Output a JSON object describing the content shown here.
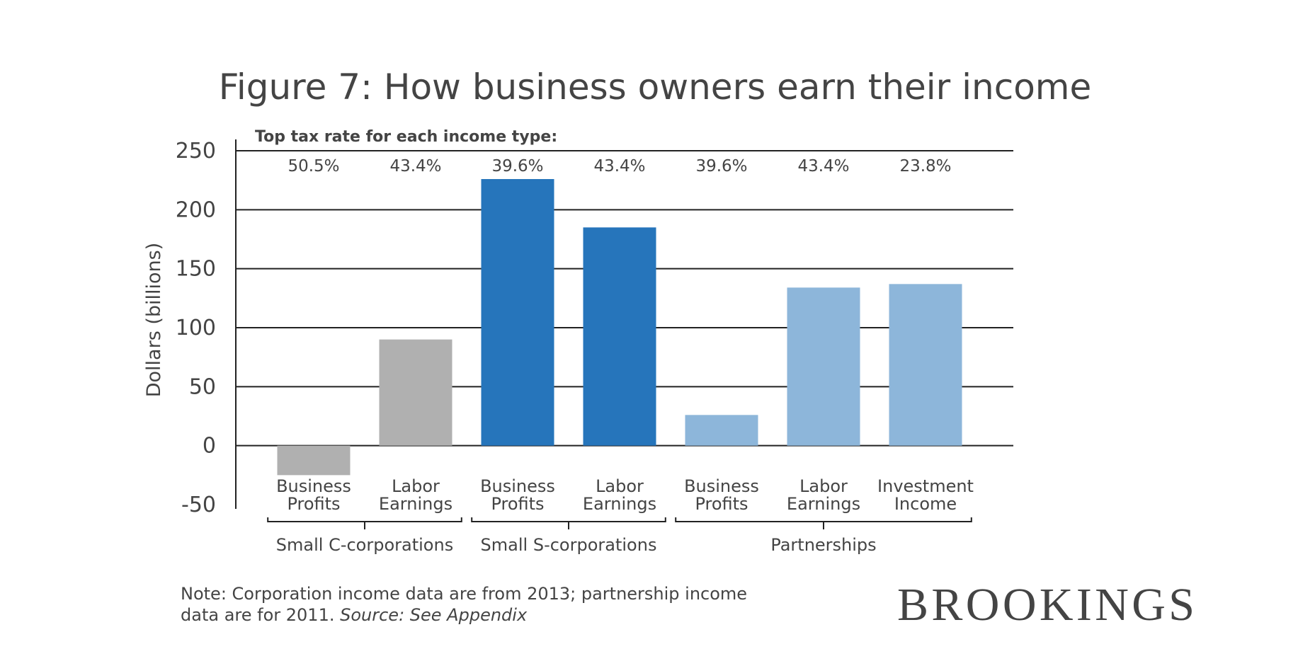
{
  "chart_data": {
    "type": "bar",
    "title": "Figure 7: How business owners earn their income",
    "y_label": "Dollars (billions)",
    "annotation_title": "Top tax rate for each income type:",
    "ylim": [
      -50,
      250
    ],
    "yticks": [
      -50,
      0,
      50,
      100,
      150,
      200,
      250
    ],
    "grid": true,
    "groups": [
      {
        "name": "Small C-corporations",
        "color": "#b0b0b0",
        "categories": [
          "Business Profits",
          "Labor Earnings"
        ],
        "values": [
          -25,
          90
        ],
        "tax_rates": [
          {
            "value": 50.5,
            "label": "50.5%"
          },
          {
            "value": 43.4,
            "label": "43.4%"
          }
        ]
      },
      {
        "name": "Small S-corporations",
        "color": "#2675bb",
        "categories": [
          "Business Profits",
          "Labor Earnings"
        ],
        "values": [
          226,
          185
        ],
        "tax_rates": [
          {
            "value": 39.6,
            "label": "39.6%"
          },
          {
            "value": 43.4,
            "label": "43.4%"
          }
        ]
      },
      {
        "name": "Partnerships",
        "color": "#8db6da",
        "categories": [
          "Business Profits",
          "Labor Earnings",
          "Investment Income"
        ],
        "values": [
          26,
          134,
          137
        ],
        "tax_rates": [
          {
            "value": 39.6,
            "label": "39.6%"
          },
          {
            "value": 43.4,
            "label": "43.4%"
          },
          {
            "value": 23.8,
            "label": "23.8%"
          }
        ]
      }
    ]
  },
  "note": "Note: Corporation income data are from 2013; partnership income",
  "note_line2": "data are for 2011.",
  "source": "Source: See Appendix",
  "logo": "BROOKINGS"
}
